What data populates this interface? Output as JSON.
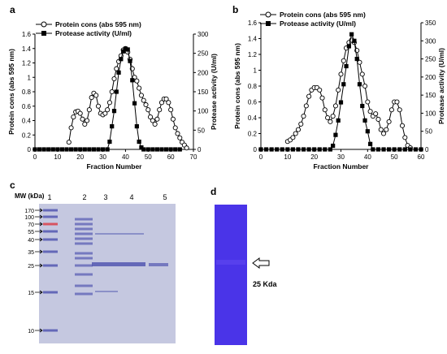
{
  "panels": {
    "a": "a",
    "b": "b",
    "c": "c",
    "d": "d"
  },
  "chart_data": [
    {
      "panel": "a",
      "type": "line",
      "xlabel": "Fraction Number",
      "ylabel": "Protein cons (abs 595 nm)",
      "y2label": "Protease activity (U/ml)",
      "xlim": [
        0,
        70
      ],
      "ylim": [
        0,
        1.6
      ],
      "y2lim": [
        0,
        300
      ],
      "xticks": [
        "0",
        "10",
        "20",
        "30",
        "40",
        "50",
        "60",
        "70"
      ],
      "yticks": [
        "0",
        "0.2",
        "0.4",
        "0.6",
        "0.8",
        "1",
        "1.2",
        "1.4",
        "1.6"
      ],
      "y2ticks": [
        "0",
        "50",
        "100",
        "150",
        "200",
        "250",
        "300"
      ],
      "legend_position": "top-left",
      "series": [
        {
          "name": "Protein cons (abs 595 nm)",
          "axis": "left",
          "marker": "open-circle",
          "points": [
            [
              15,
              0.1
            ],
            [
              16,
              0.3
            ],
            [
              17,
              0.45
            ],
            [
              18,
              0.52
            ],
            [
              19,
              0.53
            ],
            [
              20,
              0.5
            ],
            [
              21,
              0.42
            ],
            [
              22,
              0.35
            ],
            [
              23,
              0.4
            ],
            [
              24,
              0.55
            ],
            [
              25,
              0.72
            ],
            [
              26,
              0.78
            ],
            [
              27,
              0.75
            ],
            [
              28,
              0.6
            ],
            [
              29,
              0.5
            ],
            [
              30,
              0.48
            ],
            [
              31,
              0.5
            ],
            [
              32,
              0.55
            ],
            [
              33,
              0.65
            ],
            [
              34,
              0.8
            ],
            [
              35,
              0.98
            ],
            [
              36,
              1.12
            ],
            [
              37,
              1.22
            ],
            [
              38,
              1.3
            ],
            [
              39,
              1.38
            ],
            [
              40,
              1.4
            ],
            [
              41,
              1.35
            ],
            [
              42,
              1.25
            ],
            [
              43,
              1.12
            ],
            [
              44,
              1.0
            ],
            [
              45,
              0.95
            ],
            [
              46,
              0.85
            ],
            [
              47,
              0.75
            ],
            [
              48,
              0.68
            ],
            [
              49,
              0.62
            ],
            [
              50,
              0.55
            ],
            [
              51,
              0.45
            ],
            [
              52,
              0.4
            ],
            [
              53,
              0.35
            ],
            [
              54,
              0.42
            ],
            [
              55,
              0.55
            ],
            [
              56,
              0.65
            ],
            [
              57,
              0.7
            ],
            [
              58,
              0.7
            ],
            [
              59,
              0.65
            ],
            [
              60,
              0.55
            ],
            [
              61,
              0.42
            ],
            [
              62,
              0.3
            ],
            [
              63,
              0.22
            ],
            [
              64,
              0.16
            ],
            [
              65,
              0.1
            ],
            [
              66,
              0.06
            ],
            [
              67,
              0.02
            ]
          ]
        },
        {
          "name": "Protease activity (U/ml)",
          "axis": "right",
          "marker": "filled-square",
          "points": [
            [
              0,
              0
            ],
            [
              2,
              0
            ],
            [
              4,
              0
            ],
            [
              6,
              0
            ],
            [
              8,
              0
            ],
            [
              10,
              0
            ],
            [
              12,
              0
            ],
            [
              14,
              0
            ],
            [
              16,
              0
            ],
            [
              18,
              0
            ],
            [
              20,
              0
            ],
            [
              22,
              0
            ],
            [
              24,
              0
            ],
            [
              26,
              0
            ],
            [
              28,
              0
            ],
            [
              30,
              0
            ],
            [
              32,
              0
            ],
            [
              33,
              20
            ],
            [
              34,
              60
            ],
            [
              35,
              100
            ],
            [
              36,
              150
            ],
            [
              37,
              200
            ],
            [
              38,
              235
            ],
            [
              39,
              255
            ],
            [
              40,
              262
            ],
            [
              41,
              260
            ],
            [
              42,
              230
            ],
            [
              43,
              180
            ],
            [
              44,
              120
            ],
            [
              45,
              60
            ],
            [
              46,
              20
            ],
            [
              47,
              5
            ],
            [
              48,
              0
            ],
            [
              50,
              0
            ],
            [
              52,
              0
            ],
            [
              54,
              0
            ],
            [
              56,
              0
            ],
            [
              58,
              0
            ],
            [
              60,
              0
            ],
            [
              62,
              0
            ],
            [
              64,
              0
            ]
          ]
        }
      ]
    },
    {
      "panel": "b",
      "type": "line",
      "xlabel": "Fraction Number",
      "ylabel": "Protein cons (abs 595 nm)",
      "y2label": "Protease activity (U/ml)",
      "xlim": [
        0,
        60
      ],
      "ylim": [
        0,
        1.6
      ],
      "y2lim": [
        0,
        350
      ],
      "xticks": [
        "0",
        "10",
        "20",
        "30",
        "40",
        "50",
        "60"
      ],
      "yticks": [
        "0",
        "0.2",
        "0.4",
        "0.6",
        "0.8",
        "1",
        "1.2",
        "1.4",
        "1.6"
      ],
      "y2ticks": [
        "0",
        "50",
        "100",
        "150",
        "200",
        "250",
        "300",
        "350"
      ],
      "legend_position": "top-left",
      "series": [
        {
          "name": "Protein cons (abs 595 nm)",
          "axis": "left",
          "marker": "open-circle",
          "points": [
            [
              10,
              0.1
            ],
            [
              11,
              0.12
            ],
            [
              12,
              0.15
            ],
            [
              13,
              0.2
            ],
            [
              14,
              0.25
            ],
            [
              15,
              0.32
            ],
            [
              16,
              0.42
            ],
            [
              17,
              0.55
            ],
            [
              18,
              0.67
            ],
            [
              19,
              0.75
            ],
            [
              20,
              0.78
            ],
            [
              21,
              0.78
            ],
            [
              22,
              0.75
            ],
            [
              23,
              0.65
            ],
            [
              24,
              0.5
            ],
            [
              25,
              0.4
            ],
            [
              26,
              0.35
            ],
            [
              27,
              0.42
            ],
            [
              28,
              0.55
            ],
            [
              29,
              0.75
            ],
            [
              30,
              0.95
            ],
            [
              31,
              1.12
            ],
            [
              32,
              1.28
            ],
            [
              33,
              1.35
            ],
            [
              34,
              1.38
            ],
            [
              35,
              1.35
            ],
            [
              36,
              1.25
            ],
            [
              37,
              1.1
            ],
            [
              38,
              0.95
            ],
            [
              39,
              0.8
            ],
            [
              40,
              0.6
            ],
            [
              41,
              0.48
            ],
            [
              42,
              0.42
            ],
            [
              43,
              0.45
            ],
            [
              44,
              0.38
            ],
            [
              45,
              0.25
            ],
            [
              46,
              0.2
            ],
            [
              47,
              0.25
            ],
            [
              48,
              0.35
            ],
            [
              49,
              0.5
            ],
            [
              50,
              0.6
            ],
            [
              51,
              0.6
            ],
            [
              52,
              0.5
            ],
            [
              53,
              0.3
            ],
            [
              54,
              0.15
            ],
            [
              55,
              0.05
            ],
            [
              56,
              0.02
            ]
          ]
        },
        {
          "name": "Protease activity (U/ml)",
          "axis": "right",
          "marker": "filled-square",
          "points": [
            [
              0,
              0
            ],
            [
              2,
              0
            ],
            [
              4,
              0
            ],
            [
              6,
              0
            ],
            [
              8,
              0
            ],
            [
              10,
              0
            ],
            [
              12,
              0
            ],
            [
              14,
              0
            ],
            [
              16,
              0
            ],
            [
              18,
              0
            ],
            [
              20,
              0
            ],
            [
              22,
              0
            ],
            [
              24,
              0
            ],
            [
              26,
              0
            ],
            [
              27,
              10
            ],
            [
              28,
              40
            ],
            [
              29,
              80
            ],
            [
              30,
              130
            ],
            [
              31,
              180
            ],
            [
              32,
              230
            ],
            [
              33,
              285
            ],
            [
              34,
              318
            ],
            [
              35,
              300
            ],
            [
              36,
              250
            ],
            [
              37,
              180
            ],
            [
              38,
              120
            ],
            [
              39,
              80
            ],
            [
              40,
              50
            ],
            [
              41,
              15
            ],
            [
              42,
              0
            ],
            [
              44,
              0
            ],
            [
              46,
              0
            ],
            [
              48,
              0
            ],
            [
              50,
              0
            ],
            [
              52,
              0
            ],
            [
              54,
              0
            ],
            [
              56,
              0
            ],
            [
              58,
              0
            ],
            [
              60,
              0
            ]
          ]
        }
      ]
    }
  ],
  "gel_c": {
    "mw_title": "MW (kDa)",
    "lane_labels": [
      "1",
      "2",
      "3",
      "4",
      "5"
    ],
    "markers": [
      "170",
      "100",
      "70",
      "55",
      "40",
      "35",
      "25",
      "15",
      "10"
    ]
  },
  "gel_d": {
    "band_label": "25 Kda"
  },
  "colors": {
    "gel_background": "#bfc3de",
    "gel_band": "#5257b0",
    "zymogram_background": "#4a34e8",
    "ladder_red": "#d8404a"
  }
}
